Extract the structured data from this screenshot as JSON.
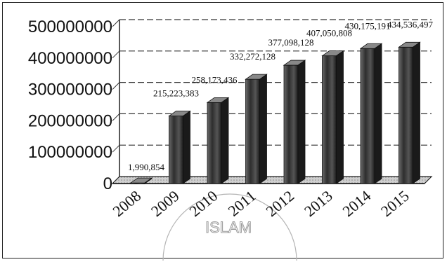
{
  "chart_data": {
    "type": "bar",
    "categories": [
      "2008",
      "2009",
      "2010",
      "2011",
      "2012",
      "2013",
      "2014",
      "2015"
    ],
    "values": [
      1990854,
      215223383,
      258173436,
      332272128,
      377098128,
      407050808,
      430175191,
      434536497
    ],
    "data_labels": [
      "1,990,854",
      "215,223,383",
      "258,173,436",
      "332,272,128",
      "377,098,128",
      "407,050,808",
      "430,175,191",
      "434,536,497"
    ],
    "y_ticks": [
      "0",
      "100000000",
      "200000000",
      "300000000",
      "400000000",
      "500000000"
    ],
    "ylim": [
      0,
      500000000
    ],
    "grid": true,
    "title": "",
    "xlabel": "",
    "ylabel": "",
    "bar_color": "#4a4a4a",
    "watermark": "ISLAM"
  }
}
